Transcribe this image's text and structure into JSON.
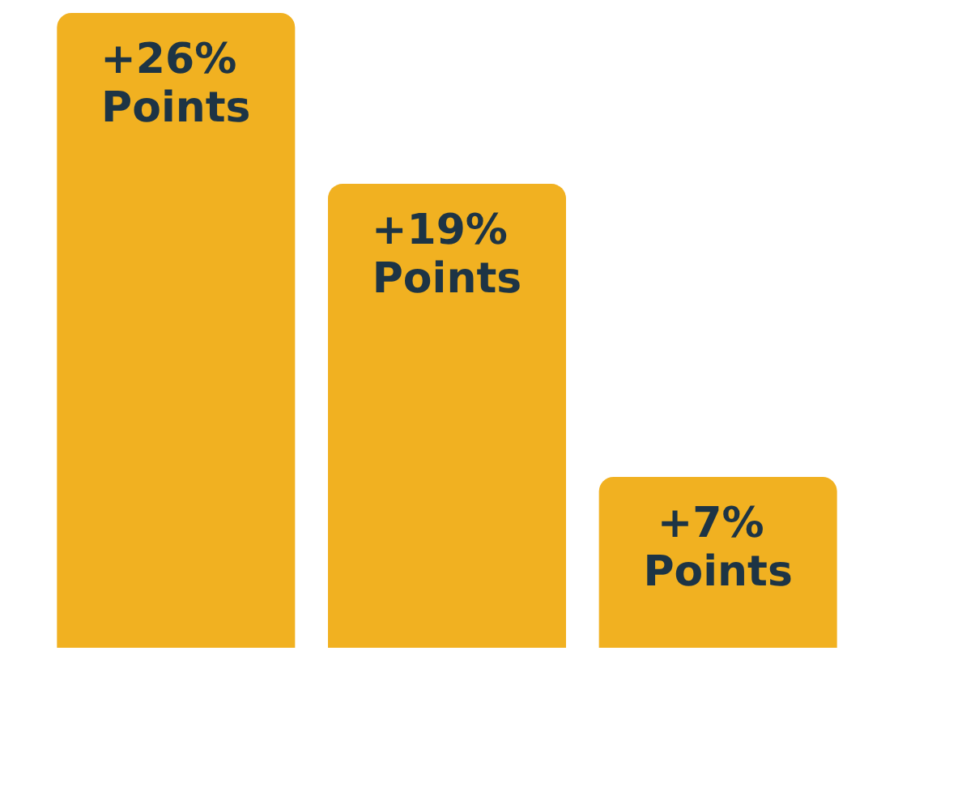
{
  "chart_data": {
    "type": "bar",
    "categories": [
      null,
      null,
      null
    ],
    "values": [
      26,
      19,
      7
    ],
    "color": "#f1b121",
    "value_labels": [
      "+26% Points",
      "+19% Points",
      "+7% Points"
    ]
  }
}
